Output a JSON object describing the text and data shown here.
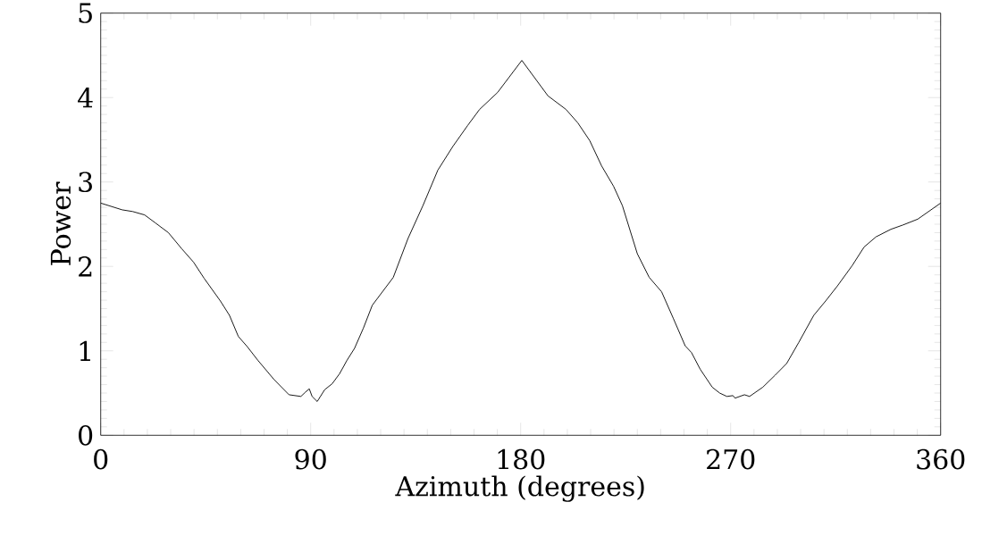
{
  "chart_data": {
    "type": "line",
    "xlabel": "Azimuth (degrees)",
    "ylabel": "Power",
    "xlim": [
      0,
      360
    ],
    "xticks": [
      0,
      90,
      180,
      270,
      360
    ],
    "ylim": [
      0,
      5
    ],
    "yticks": [
      0,
      1,
      2,
      3,
      4,
      5
    ],
    "grid": false,
    "series": [
      {
        "color": "#000000",
        "x": [
          0,
          9.2,
          13.7,
          18.8,
          23.2,
          29.0,
          34.7,
          39.8,
          44.3,
          51.3,
          55.2,
          59.0,
          62.8,
          67.3,
          74.3,
          80.7,
          85.8,
          87.7,
          89.4,
          90.6,
          92.8,
          96.0,
          99.2,
          102.4,
          105.6,
          108.8,
          112.6,
          116.4,
          125.4,
          131.7,
          138.1,
          144.5,
          150.9,
          157.3,
          162.4,
          170.1,
          180.5,
          191.7,
          199.4,
          204.5,
          209.6,
          214.7,
          219.8,
          223.6,
          230.0,
          235.1,
          240.4,
          245.5,
          250.5,
          253.2,
          257.0,
          262.1,
          265.3,
          268.4,
          271.0,
          271.9,
          275.9,
          278.1,
          283.8,
          289.0,
          294.0,
          299.2,
          305.6,
          310.7,
          315.8,
          322.1,
          327.2,
          332.3,
          338.7,
          343.8,
          350.2,
          360
        ],
        "values": [
          2.75,
          2.67,
          2.65,
          2.61,
          2.52,
          2.4,
          2.21,
          2.05,
          1.86,
          1.59,
          1.42,
          1.17,
          1.05,
          0.89,
          0.66,
          0.48,
          0.46,
          0.51,
          0.55,
          0.46,
          0.4,
          0.54,
          0.61,
          0.73,
          0.89,
          1.03,
          1.27,
          1.54,
          1.87,
          2.33,
          2.72,
          3.14,
          3.42,
          3.67,
          3.86,
          4.06,
          4.44,
          4.02,
          3.86,
          3.7,
          3.49,
          3.19,
          2.95,
          2.72,
          2.15,
          1.87,
          1.7,
          1.38,
          1.06,
          0.98,
          0.78,
          0.57,
          0.5,
          0.46,
          0.47,
          0.44,
          0.48,
          0.46,
          0.57,
          0.71,
          0.85,
          1.1,
          1.42,
          1.59,
          1.77,
          2.01,
          2.23,
          2.35,
          2.44,
          2.49,
          2.56,
          2.75
        ]
      }
    ]
  }
}
